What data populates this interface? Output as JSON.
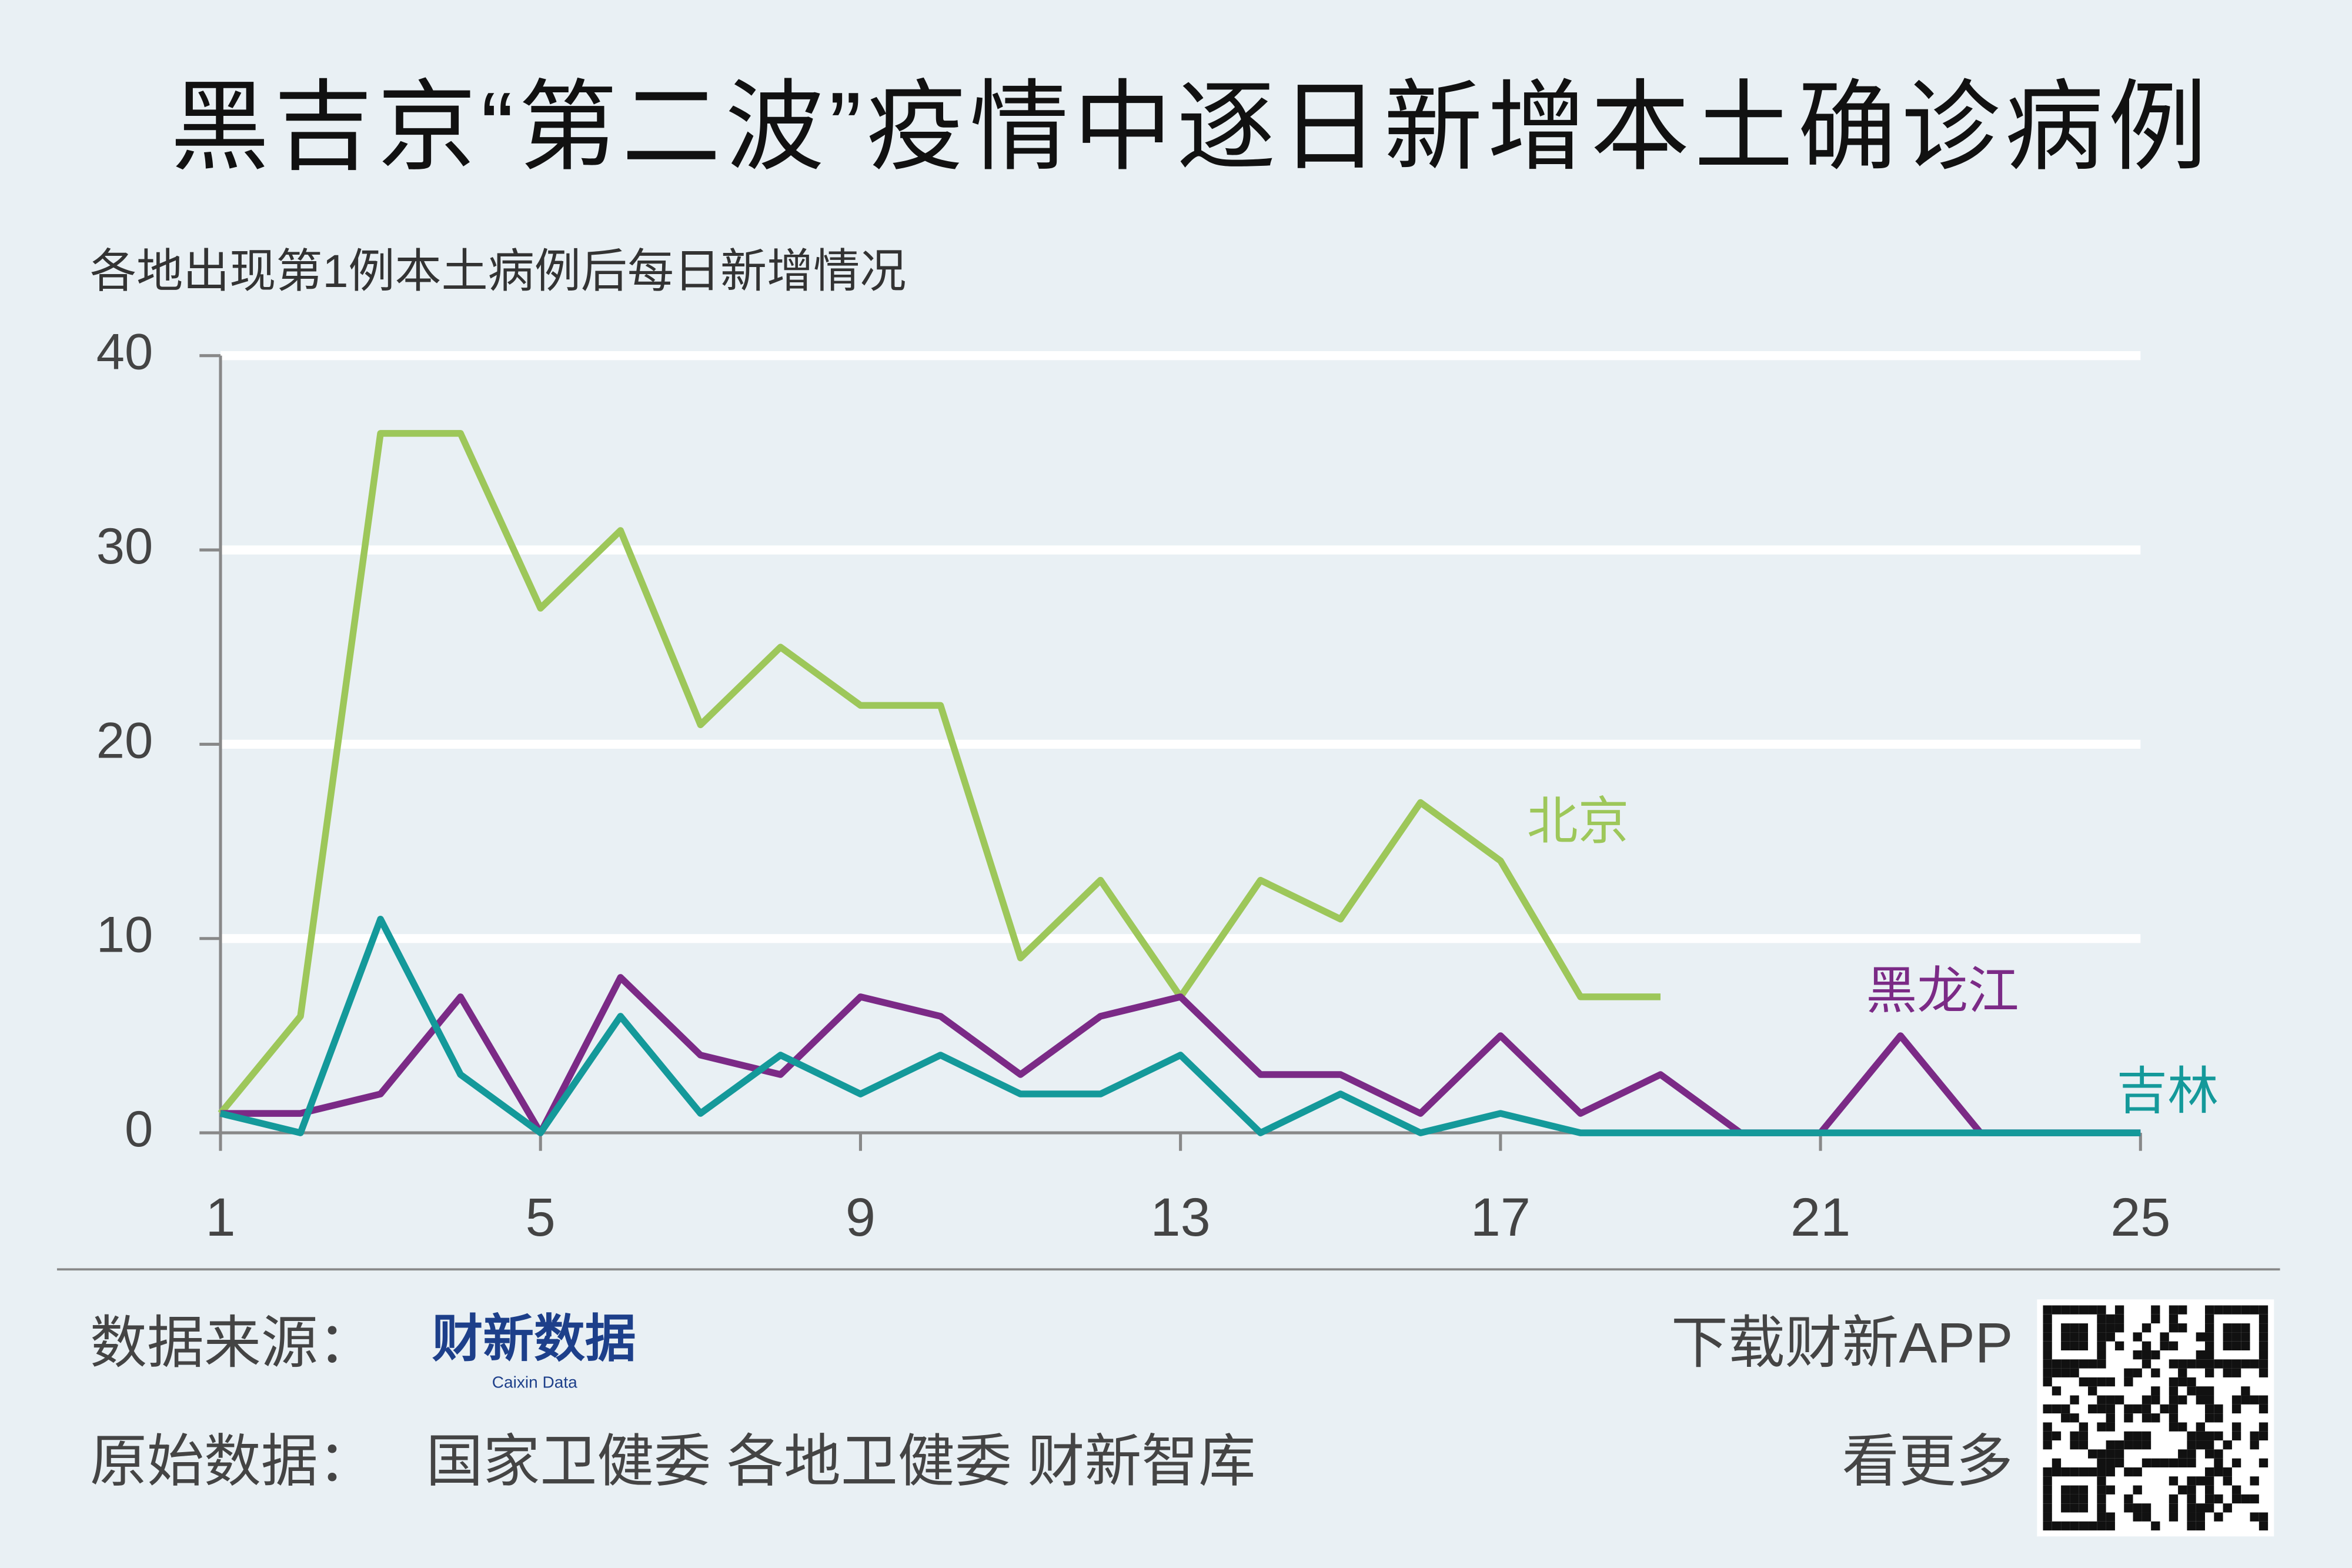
{
  "chart_data": {
    "type": "line",
    "title": "黑吉京“第二波”疫情中逐日新增本土确诊病例",
    "subtitle": "各地出现第1例本土病例后每日新增情况",
    "x": [
      1,
      2,
      3,
      4,
      5,
      6,
      7,
      8,
      9,
      10,
      11,
      12,
      13,
      14,
      15,
      16,
      17,
      18,
      19,
      20,
      21,
      22,
      23,
      24,
      25
    ],
    "xlim": [
      1,
      25
    ],
    "xticks": [
      1,
      5,
      9,
      13,
      17,
      21,
      25
    ],
    "ylim": [
      0,
      40
    ],
    "yticks": [
      0,
      10,
      20,
      30,
      40
    ],
    "grid": true,
    "series": [
      {
        "name": "北京",
        "color": "#9dc75a",
        "values": [
          1,
          6,
          36,
          36,
          27,
          31,
          21,
          25,
          22,
          22,
          9,
          13,
          7,
          13,
          11,
          17,
          14,
          7,
          7,
          null,
          null,
          null,
          null,
          null,
          null
        ]
      },
      {
        "name": "黑龙江",
        "color": "#7b2a86",
        "values": [
          1,
          1,
          2,
          7,
          0,
          8,
          4,
          3,
          7,
          6,
          3,
          6,
          7,
          3,
          3,
          1,
          5,
          1,
          3,
          0,
          0,
          5,
          0,
          0,
          0
        ]
      },
      {
        "name": "吉林",
        "color": "#14999a",
        "values": [
          1,
          0,
          11,
          3,
          0,
          6,
          1,
          4,
          2,
          4,
          2,
          2,
          4,
          0,
          2,
          0,
          1,
          0,
          0,
          0,
          0,
          0,
          0,
          0,
          0
        ]
      }
    ]
  },
  "footer": {
    "source_label": "数据来源：",
    "source_logo": "财新数据",
    "source_logo_sub": "Caixin Data",
    "raw_label": "原始数据：",
    "raw_sources": "国家卫健委 各地卫健委 财新智库",
    "app_line1": "下载财新APP",
    "app_line2": "看更多"
  }
}
